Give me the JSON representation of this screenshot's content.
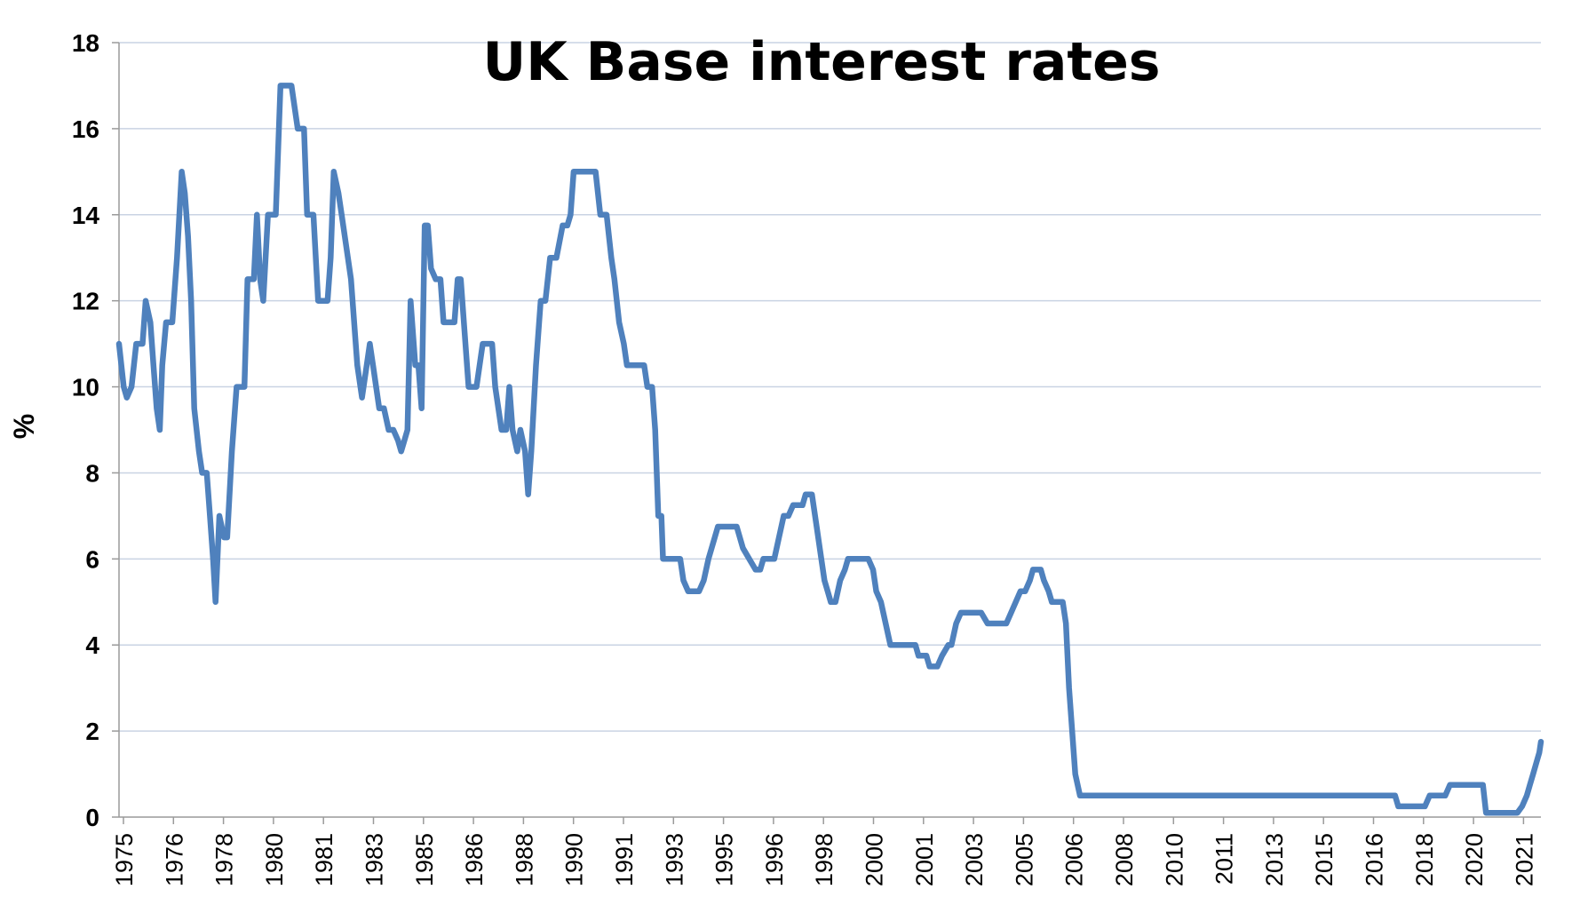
{
  "chart_data": {
    "type": "line",
    "title": "UK Base interest rates",
    "xlabel": "",
    "ylabel": "%",
    "ylim": [
      0,
      18
    ],
    "yticks": [
      0,
      2,
      4,
      6,
      8,
      10,
      12,
      14,
      16,
      18
    ],
    "grid": "horizontal",
    "legend": "none",
    "line_color": "#4f81bd",
    "x_tick_labels": [
      "1975",
      "1976",
      "1978",
      "1980",
      "1981",
      "1983",
      "1985",
      "1986",
      "1988",
      "1990",
      "1991",
      "1993",
      "1995",
      "1996",
      "1998",
      "2000",
      "2001",
      "2003",
      "2005",
      "2006",
      "2008",
      "2010",
      "2011",
      "2013",
      "2015",
      "2016",
      "2018",
      "2020",
      "2021"
    ],
    "series": [
      {
        "values": [
          [
            1975.0,
            11.0
          ],
          [
            1975.15,
            10.0
          ],
          [
            1975.25,
            9.75
          ],
          [
            1975.4,
            10.0
          ],
          [
            1975.55,
            11.0
          ],
          [
            1975.75,
            11.0
          ],
          [
            1975.85,
            12.0
          ],
          [
            1976.0,
            11.5
          ],
          [
            1976.1,
            10.5
          ],
          [
            1976.2,
            9.5
          ],
          [
            1976.3,
            9.0
          ],
          [
            1976.38,
            10.5
          ],
          [
            1976.5,
            11.5
          ],
          [
            1976.7,
            11.5
          ],
          [
            1976.85,
            13.0
          ],
          [
            1977.0,
            15.0
          ],
          [
            1977.1,
            14.5
          ],
          [
            1977.2,
            13.5
          ],
          [
            1977.3,
            12.0
          ],
          [
            1977.4,
            9.5
          ],
          [
            1977.55,
            8.5
          ],
          [
            1977.65,
            8.0
          ],
          [
            1977.8,
            8.0
          ],
          [
            1977.9,
            7.0
          ],
          [
            1978.0,
            6.0
          ],
          [
            1978.08,
            5.0
          ],
          [
            1978.2,
            7.0
          ],
          [
            1978.35,
            6.5
          ],
          [
            1978.45,
            6.5
          ],
          [
            1978.6,
            8.5
          ],
          [
            1978.75,
            10.0
          ],
          [
            1979.0,
            10.0
          ],
          [
            1979.1,
            12.5
          ],
          [
            1979.3,
            12.5
          ],
          [
            1979.4,
            14.0
          ],
          [
            1979.5,
            12.5
          ],
          [
            1979.6,
            12.0
          ],
          [
            1979.75,
            14.0
          ],
          [
            1980.0,
            14.0
          ],
          [
            1980.15,
            17.0
          ],
          [
            1980.5,
            17.0
          ],
          [
            1980.7,
            16.0
          ],
          [
            1980.9,
            16.0
          ],
          [
            1981.0,
            14.0
          ],
          [
            1981.2,
            14.0
          ],
          [
            1981.35,
            12.0
          ],
          [
            1981.65,
            12.0
          ],
          [
            1981.75,
            13.0
          ],
          [
            1981.85,
            15.0
          ],
          [
            1982.0,
            14.5
          ],
          [
            1982.1,
            14.0
          ],
          [
            1982.3,
            13.0
          ],
          [
            1982.4,
            12.5
          ],
          [
            1982.6,
            10.5
          ],
          [
            1982.75,
            9.75
          ],
          [
            1982.9,
            10.5
          ],
          [
            1983.0,
            11.0
          ],
          [
            1983.1,
            10.5
          ],
          [
            1983.2,
            10.0
          ],
          [
            1983.3,
            9.5
          ],
          [
            1983.45,
            9.5
          ],
          [
            1983.6,
            9.0
          ],
          [
            1983.75,
            9.0
          ],
          [
            1983.9,
            8.75
          ],
          [
            1984.0,
            8.5
          ],
          [
            1984.1,
            8.75
          ],
          [
            1984.2,
            9.0
          ],
          [
            1984.3,
            12.0
          ],
          [
            1984.45,
            10.5
          ],
          [
            1984.55,
            10.5
          ],
          [
            1984.65,
            9.5
          ],
          [
            1984.75,
            13.75
          ],
          [
            1984.85,
            13.75
          ],
          [
            1984.95,
            12.75
          ],
          [
            1985.1,
            12.5
          ],
          [
            1985.25,
            12.5
          ],
          [
            1985.35,
            11.5
          ],
          [
            1985.55,
            11.5
          ],
          [
            1985.7,
            11.5
          ],
          [
            1985.8,
            12.5
          ],
          [
            1985.9,
            12.5
          ],
          [
            1986.0,
            11.5
          ],
          [
            1986.15,
            10.0
          ],
          [
            1986.4,
            10.0
          ],
          [
            1986.6,
            11.0
          ],
          [
            1986.9,
            11.0
          ],
          [
            1987.0,
            10.0
          ],
          [
            1987.2,
            9.0
          ],
          [
            1987.35,
            9.0
          ],
          [
            1987.45,
            10.0
          ],
          [
            1987.55,
            9.0
          ],
          [
            1987.7,
            8.5
          ],
          [
            1987.8,
            9.0
          ],
          [
            1987.95,
            8.5
          ],
          [
            1988.05,
            7.5
          ],
          [
            1988.15,
            8.5
          ],
          [
            1988.3,
            10.5
          ],
          [
            1988.45,
            12.0
          ],
          [
            1988.6,
            12.0
          ],
          [
            1988.75,
            13.0
          ],
          [
            1988.95,
            13.0
          ],
          [
            1989.15,
            13.75
          ],
          [
            1989.3,
            13.75
          ],
          [
            1989.4,
            14.0
          ],
          [
            1989.5,
            15.0
          ],
          [
            1989.75,
            15.0
          ],
          [
            1990.0,
            15.0
          ],
          [
            1990.2,
            15.0
          ],
          [
            1990.35,
            14.0
          ],
          [
            1990.55,
            14.0
          ],
          [
            1990.7,
            13.0
          ],
          [
            1990.8,
            12.5
          ],
          [
            1990.95,
            11.5
          ],
          [
            1991.1,
            11.0
          ],
          [
            1991.2,
            10.5
          ],
          [
            1991.5,
            10.5
          ],
          [
            1991.75,
            10.5
          ],
          [
            1991.85,
            10.0
          ],
          [
            1992.0,
            10.0
          ],
          [
            1992.1,
            9.0
          ],
          [
            1992.2,
            7.0
          ],
          [
            1992.3,
            7.0
          ],
          [
            1992.35,
            6.0
          ],
          [
            1992.6,
            6.0
          ],
          [
            1992.9,
            6.0
          ],
          [
            1993.0,
            5.5
          ],
          [
            1993.15,
            5.25
          ],
          [
            1993.5,
            5.25
          ],
          [
            1993.65,
            5.5
          ],
          [
            1993.8,
            6.0
          ],
          [
            1994.0,
            6.5
          ],
          [
            1994.1,
            6.75
          ],
          [
            1994.5,
            6.75
          ],
          [
            1994.7,
            6.75
          ],
          [
            1994.9,
            6.25
          ],
          [
            1995.1,
            6.0
          ],
          [
            1995.3,
            5.75
          ],
          [
            1995.45,
            5.75
          ],
          [
            1995.55,
            6.0
          ],
          [
            1995.9,
            6.0
          ],
          [
            1996.05,
            6.5
          ],
          [
            1996.2,
            7.0
          ],
          [
            1996.35,
            7.0
          ],
          [
            1996.5,
            7.25
          ],
          [
            1996.8,
            7.25
          ],
          [
            1996.9,
            7.5
          ],
          [
            1997.1,
            7.5
          ],
          [
            1997.25,
            6.75
          ],
          [
            1997.35,
            6.25
          ],
          [
            1997.5,
            5.5
          ],
          [
            1997.6,
            5.25
          ],
          [
            1997.7,
            5.0
          ],
          [
            1997.85,
            5.0
          ],
          [
            1998.0,
            5.5
          ],
          [
            1998.15,
            5.75
          ],
          [
            1998.25,
            6.0
          ],
          [
            1998.5,
            6.0
          ],
          [
            1998.9,
            6.0
          ],
          [
            1999.05,
            5.75
          ],
          [
            1999.15,
            5.25
          ],
          [
            1999.3,
            5.0
          ],
          [
            1999.45,
            4.5
          ],
          [
            1999.6,
            4.0
          ],
          [
            1999.8,
            4.0
          ],
          [
            2000.1,
            4.0
          ],
          [
            2000.4,
            4.0
          ],
          [
            2000.5,
            3.75
          ],
          [
            2000.75,
            3.75
          ],
          [
            2000.85,
            3.5
          ],
          [
            2001.1,
            3.5
          ],
          [
            2001.25,
            3.75
          ],
          [
            2001.45,
            4.0
          ],
          [
            2001.55,
            4.0
          ],
          [
            2001.7,
            4.5
          ],
          [
            2001.85,
            4.75
          ],
          [
            2002.0,
            4.75
          ],
          [
            2002.5,
            4.75
          ],
          [
            2002.7,
            4.5
          ],
          [
            2003.0,
            4.5
          ],
          [
            2003.3,
            4.5
          ],
          [
            2003.45,
            4.75
          ],
          [
            2003.6,
            5.0
          ],
          [
            2003.75,
            5.25
          ],
          [
            2003.9,
            5.25
          ],
          [
            2004.05,
            5.5
          ],
          [
            2004.15,
            5.75
          ],
          [
            2004.4,
            5.75
          ],
          [
            2004.5,
            5.5
          ],
          [
            2004.65,
            5.25
          ],
          [
            2004.75,
            5.0
          ],
          [
            2005.1,
            5.0
          ],
          [
            2005.2,
            4.5
          ],
          [
            2005.3,
            3.0
          ],
          [
            2005.4,
            2.0
          ],
          [
            2005.5,
            1.0
          ],
          [
            2005.65,
            0.5
          ],
          [
            2005.9,
            0.5
          ],
          [
            2007.0,
            0.5
          ],
          [
            2008.0,
            0.5
          ],
          [
            2009.0,
            0.5
          ],
          [
            2010.0,
            0.5
          ],
          [
            2011.0,
            0.5
          ],
          [
            2012.0,
            0.5
          ],
          [
            2013.0,
            0.5
          ],
          [
            2014.0,
            0.5
          ],
          [
            2015.0,
            0.5
          ],
          [
            2015.7,
            0.5
          ],
          [
            2015.8,
            0.25
          ],
          [
            2016.5,
            0.25
          ],
          [
            2016.65,
            0.25
          ],
          [
            2016.8,
            0.5
          ],
          [
            2017.3,
            0.5
          ],
          [
            2017.45,
            0.75
          ],
          [
            2018.4,
            0.75
          ],
          [
            2018.5,
            0.75
          ],
          [
            2018.6,
            0.1
          ],
          [
            2019.6,
            0.1
          ],
          [
            2019.75,
            0.25
          ],
          [
            2019.9,
            0.5
          ],
          [
            2020.0,
            0.75
          ],
          [
            2020.1,
            1.0
          ],
          [
            2020.2,
            1.25
          ],
          [
            2020.3,
            1.5
          ],
          [
            2020.35,
            1.75
          ]
        ]
      }
    ]
  }
}
